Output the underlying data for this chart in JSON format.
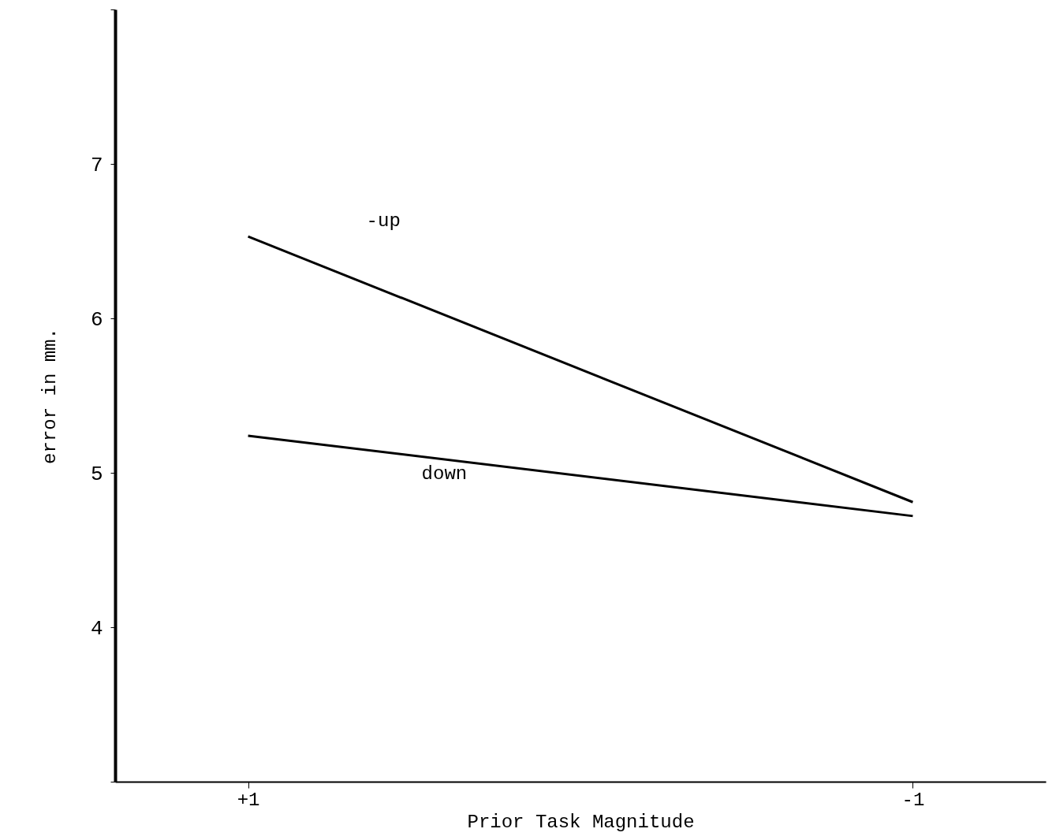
{
  "chart_data": {
    "type": "line",
    "xlabel": "Prior Task Magnitude",
    "ylabel": "error in mm.",
    "categories": [
      "+1",
      "-1"
    ],
    "series": [
      {
        "name": "-up",
        "color": "#000000",
        "values": [
          6.53,
          4.81
        ]
      },
      {
        "name": "down",
        "color": "#000000",
        "values": [
          5.24,
          4.72
        ]
      }
    ],
    "ylim": [
      3,
      8
    ],
    "yticks": [
      {
        "value": 3,
        "label": null
      },
      4,
      5,
      6,
      7,
      {
        "value": 8,
        "label": null
      }
    ],
    "grid": false,
    "marker": "none",
    "line_style": "solid"
  }
}
